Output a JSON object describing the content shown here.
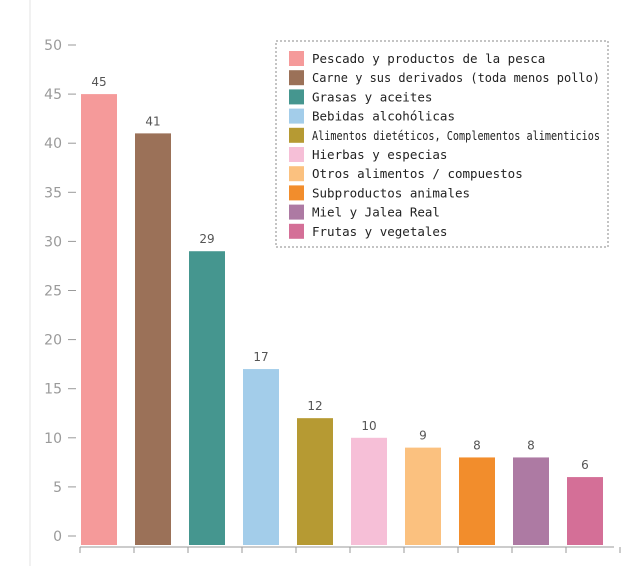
{
  "chart_data": {
    "type": "bar",
    "categories": [
      "Pescado y productos de la pesca",
      "Carne y sus derivados (toda menos pollo)",
      "Grasas y aceites",
      "Bebidas alcohólicas",
      "Alimentos dietéticos, Complementos alimenticios",
      "Hierbas y especias",
      "Otros alimentos / compuestos",
      "Subproductos animales",
      "Miel y Jalea Real",
      "Frutas y vegetales"
    ],
    "values": [
      45,
      41,
      29,
      17,
      12,
      10,
      9,
      8,
      8,
      6
    ],
    "colors": [
      "#f59a9a",
      "#9b7158",
      "#45968f",
      "#a3cdea",
      "#b69a33",
      "#f6bfd7",
      "#fbc17f",
      "#f28d2c",
      "#ad7aa3",
      "#d46f97"
    ],
    "ylim": [
      0,
      50
    ],
    "yticks": [
      0,
      5,
      10,
      15,
      20,
      25,
      30,
      35,
      40,
      45,
      50
    ],
    "legend": "top-right",
    "grid": false
  }
}
